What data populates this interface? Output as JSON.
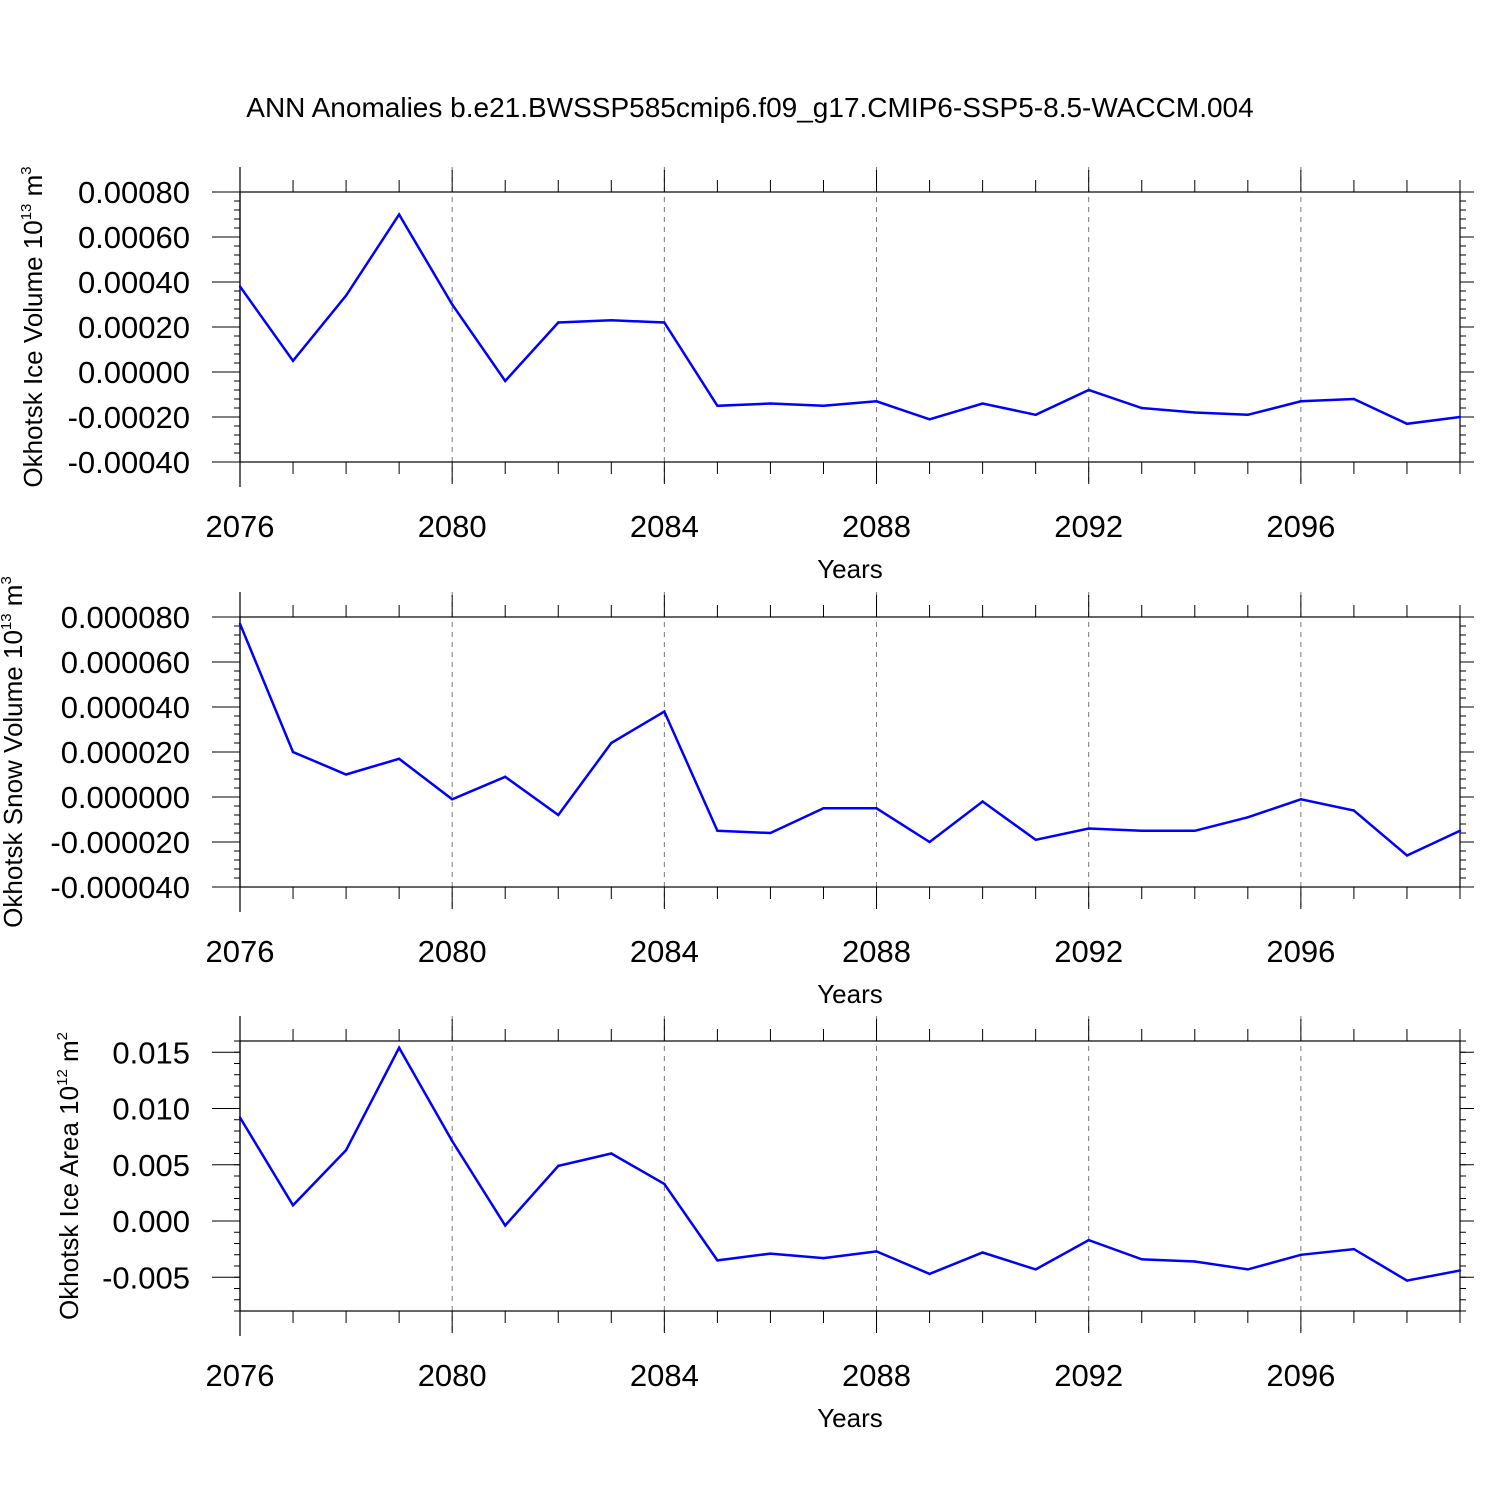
{
  "title": "ANN Anomalies b.e21.BWSSP585cmip6.f09_g17.CMIP6-SSP5-8.5-WACCM.004",
  "chart_data": [
    {
      "type": "line",
      "ylabel": "Okhotsk Ice Volume 10",
      "ylabel_exp": "13",
      "ylabel_unit": "m",
      "ylabel_unit_exp": "3",
      "xlabel": "Years",
      "xlim": [
        2076,
        2099
      ],
      "ylim": [
        -0.0004,
        0.0008
      ],
      "yticks": [
        -0.0004,
        -0.0002,
        0.0,
        0.0002,
        0.0004,
        0.0006,
        0.0008
      ],
      "yticklabels": [
        "-0.00040",
        "-0.00020",
        "0.00000",
        "0.00020",
        "0.00040",
        "0.00060",
        "0.00080"
      ],
      "xticks": [
        2076,
        2080,
        2084,
        2088,
        2092,
        2096
      ],
      "xticklabels": [
        "2076",
        "2080",
        "2084",
        "2088",
        "2092",
        "2096"
      ],
      "x": [
        2076,
        2077,
        2078,
        2079,
        2080,
        2081,
        2082,
        2083,
        2084,
        2085,
        2086,
        2087,
        2088,
        2089,
        2090,
        2091,
        2092,
        2093,
        2094,
        2095,
        2096,
        2097,
        2098,
        2099
      ],
      "values": [
        0.00038,
        5e-05,
        0.00034,
        0.0007,
        0.0003,
        -4e-05,
        0.00022,
        0.00023,
        0.00022,
        -0.00015,
        -0.00014,
        -0.00015,
        -0.00013,
        -0.00021,
        -0.00014,
        -0.00019,
        -8e-05,
        -0.00016,
        -0.00018,
        -0.00019,
        -0.00013,
        -0.00012,
        -0.00023,
        -0.0002
      ],
      "line_color": "#0000ff",
      "grid": "vertical dashed at labeled years"
    },
    {
      "type": "line",
      "ylabel": "Okhotsk Snow Volume 10",
      "ylabel_exp": "13",
      "ylabel_unit": "m",
      "ylabel_unit_exp": "3",
      "xlabel": "Years",
      "xlim": [
        2076,
        2099
      ],
      "ylim": [
        -4e-05,
        8e-05
      ],
      "yticks": [
        -4e-05,
        -2e-05,
        0.0,
        2e-05,
        4e-05,
        6e-05,
        8e-05
      ],
      "yticklabels": [
        "-0.000040",
        "-0.000020",
        "0.000000",
        "0.000020",
        "0.000040",
        "0.000060",
        "0.000080"
      ],
      "xticks": [
        2076,
        2080,
        2084,
        2088,
        2092,
        2096
      ],
      "xticklabels": [
        "2076",
        "2080",
        "2084",
        "2088",
        "2092",
        "2096"
      ],
      "x": [
        2076,
        2077,
        2078,
        2079,
        2080,
        2081,
        2082,
        2083,
        2084,
        2085,
        2086,
        2087,
        2088,
        2089,
        2090,
        2091,
        2092,
        2093,
        2094,
        2095,
        2096,
        2097,
        2098,
        2099
      ],
      "values": [
        7.7e-05,
        2e-05,
        1e-05,
        1.7e-05,
        -1e-06,
        9e-06,
        -8e-06,
        2.4e-05,
        3.8e-05,
        -1.5e-05,
        -1.6e-05,
        -5e-06,
        -5e-06,
        -2e-05,
        -2e-06,
        -1.9e-05,
        -1.4e-05,
        -1.5e-05,
        -1.5e-05,
        -9e-06,
        -1e-06,
        -6e-06,
        -2.6e-05,
        -1.5e-05
      ],
      "line_color": "#0000ff",
      "grid": "vertical dashed at labeled years"
    },
    {
      "type": "line",
      "ylabel": "Okhotsk Ice Area 10",
      "ylabel_exp": "12",
      "ylabel_unit": "m",
      "ylabel_unit_exp": "2",
      "xlabel": "Years",
      "xlim": [
        2076,
        2099
      ],
      "ylim": [
        -0.008,
        0.016
      ],
      "yticks": [
        -0.005,
        0.0,
        0.005,
        0.01,
        0.015
      ],
      "yticklabels": [
        "-0.005",
        "0.000",
        "0.005",
        "0.010",
        "0.015"
      ],
      "xticks": [
        2076,
        2080,
        2084,
        2088,
        2092,
        2096
      ],
      "xticklabels": [
        "2076",
        "2080",
        "2084",
        "2088",
        "2092",
        "2096"
      ],
      "x": [
        2076,
        2077,
        2078,
        2079,
        2080,
        2081,
        2082,
        2083,
        2084,
        2085,
        2086,
        2087,
        2088,
        2089,
        2090,
        2091,
        2092,
        2093,
        2094,
        2095,
        2096,
        2097,
        2098,
        2099
      ],
      "values": [
        0.0092,
        0.0014,
        0.0063,
        0.0154,
        0.0071,
        -0.0004,
        0.0049,
        0.006,
        0.0033,
        -0.0035,
        -0.0029,
        -0.0033,
        -0.0027,
        -0.0047,
        -0.0028,
        -0.0043,
        -0.0017,
        -0.0034,
        -0.0036,
        -0.0043,
        -0.003,
        -0.0025,
        -0.0053,
        -0.0044
      ],
      "line_color": "#0000ff",
      "grid": "vertical dashed at labeled years"
    }
  ]
}
